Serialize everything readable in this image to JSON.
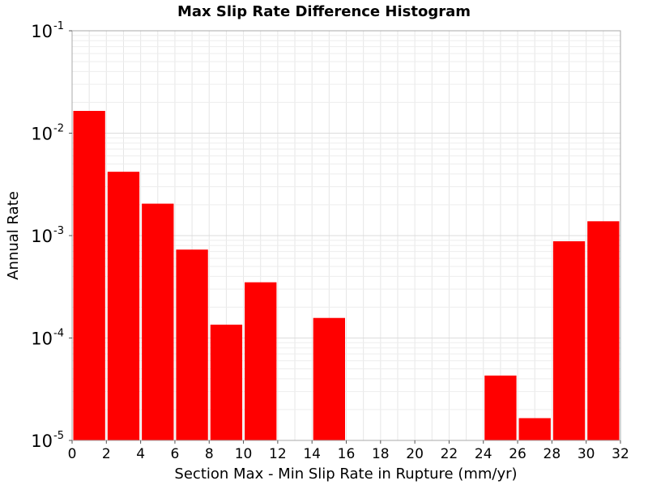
{
  "chart_data": {
    "type": "bar",
    "title": "Max Slip Rate Difference Histogram",
    "xlabel": "Section Max - Min Slip Rate in Rupture (mm/yr)",
    "ylabel": "Annual Rate",
    "x_scale": "linear",
    "y_scale": "log",
    "xlim": [
      0,
      32
    ],
    "ylim": [
      1e-05,
      0.1
    ],
    "x_ticks": [
      "0",
      "2",
      "4",
      "6",
      "8",
      "10",
      "12",
      "14",
      "16",
      "18",
      "20",
      "22",
      "24",
      "26",
      "28",
      "30",
      "32"
    ],
    "y_ticks": [
      {
        "base": "10",
        "exp": "-5"
      },
      {
        "base": "10",
        "exp": "-4"
      },
      {
        "base": "10",
        "exp": "-3"
      },
      {
        "base": "10",
        "exp": "-2"
      },
      {
        "base": "10",
        "exp": "-1"
      }
    ],
    "bin_width": 2,
    "bar_color": "#ff0000",
    "grid": true,
    "bars": [
      {
        "x_start": 0,
        "x_end": 2,
        "value": 0.0165
      },
      {
        "x_start": 2,
        "x_end": 4,
        "value": 0.0042
      },
      {
        "x_start": 4,
        "x_end": 6,
        "value": 0.00205
      },
      {
        "x_start": 6,
        "x_end": 8,
        "value": 0.00073
      },
      {
        "x_start": 8,
        "x_end": 10,
        "value": 0.000135
      },
      {
        "x_start": 10,
        "x_end": 12,
        "value": 0.00035
      },
      {
        "x_start": 14,
        "x_end": 16,
        "value": 0.000157
      },
      {
        "x_start": 24,
        "x_end": 26,
        "value": 4.3e-05
      },
      {
        "x_start": 26,
        "x_end": 28,
        "value": 1.65e-05
      },
      {
        "x_start": 28,
        "x_end": 30,
        "value": 0.00088
      },
      {
        "x_start": 30,
        "x_end": 32,
        "value": 0.00138
      }
    ]
  }
}
